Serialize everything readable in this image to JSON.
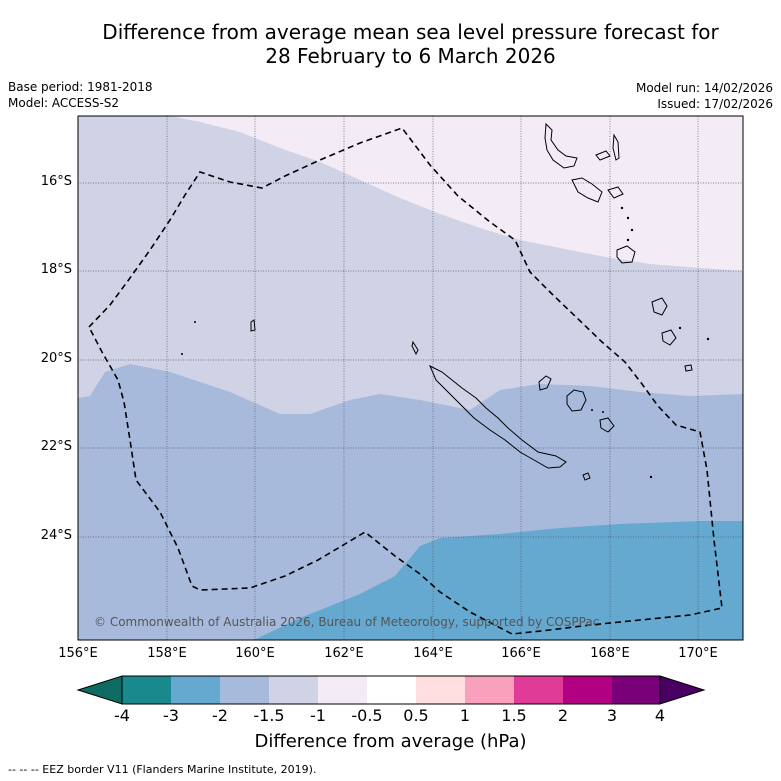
{
  "title": {
    "line1": "Difference from average mean sea level pressure forecast for",
    "line2": "28 February to 6 March 2026"
  },
  "meta": {
    "base_period": "Base period: 1981-2018",
    "model": "Model: ACCESS-S2",
    "model_run": "Model run: 14/02/2026",
    "issued": "Issued: 17/02/2026"
  },
  "map": {
    "lat_labels": [
      "16°S",
      "18°S",
      "20°S",
      "22°S",
      "24°S"
    ],
    "lon_labels": [
      "156°E",
      "158°E",
      "160°E",
      "162°E",
      "164°E",
      "166°E",
      "168°E",
      "170°E"
    ],
    "copyright": "© Commonwealth of Australia 2026, Bureau of Meteorology, supported by COSPPac",
    "zones": [
      {
        "range": "-0.5 to -1",
        "color": "#f3ebf5"
      },
      {
        "range": "-1 to -1.5",
        "color": "#d0d2e6"
      },
      {
        "range": "-1.5 to -2",
        "color": "#a8badb"
      },
      {
        "range": "-2 to -3",
        "color": "#65a9d0"
      }
    ]
  },
  "colorbar": {
    "labels": [
      "-4",
      "-3",
      "-2",
      "-1.5",
      "-1",
      "-0.5",
      "0.5",
      "1",
      "1.5",
      "2",
      "3",
      "4"
    ],
    "colors": [
      "#19898e",
      "#65a9d0",
      "#a8badb",
      "#d0d2e6",
      "#f3ebf5",
      "#ffffff",
      "#ffdfe0",
      "#f9a0bc",
      "#e03c97",
      "#b10081",
      "#7a0079"
    ],
    "under_color": "#0d6b62",
    "over_color": "#4a0062",
    "title": "Difference from average (hPa)"
  },
  "footnote": "-- -- -- EEZ border V11 (Flanders Marine Institute, 2019)."
}
